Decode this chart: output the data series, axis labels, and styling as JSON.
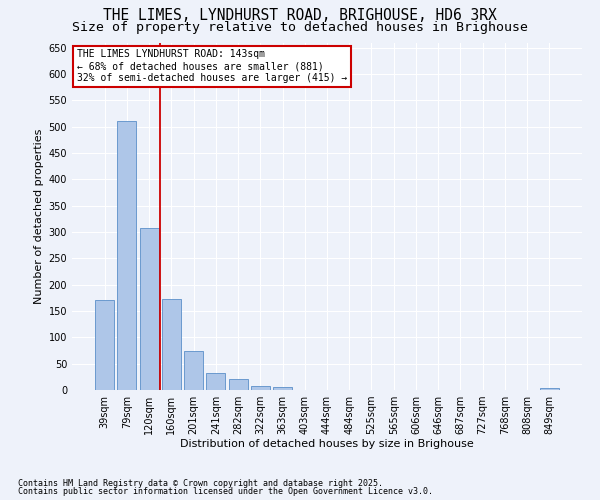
{
  "title_line1": "THE LIMES, LYNDHURST ROAD, BRIGHOUSE, HD6 3RX",
  "title_line2": "Size of property relative to detached houses in Brighouse",
  "xlabel": "Distribution of detached houses by size in Brighouse",
  "ylabel": "Number of detached properties",
  "categories": [
    "39sqm",
    "79sqm",
    "120sqm",
    "160sqm",
    "201sqm",
    "241sqm",
    "282sqm",
    "322sqm",
    "363sqm",
    "403sqm",
    "444sqm",
    "484sqm",
    "525sqm",
    "565sqm",
    "606sqm",
    "646sqm",
    "687sqm",
    "727sqm",
    "768sqm",
    "808sqm",
    "849sqm"
  ],
  "values": [
    170,
    510,
    308,
    173,
    75,
    33,
    20,
    8,
    5,
    0,
    0,
    0,
    0,
    0,
    0,
    0,
    0,
    0,
    0,
    0,
    4
  ],
  "bar_color": "#aec6e8",
  "bar_edgecolor": "#5b8fc9",
  "vline_color": "#cc0000",
  "vline_pos": 2.5,
  "ylim": [
    0,
    660
  ],
  "yticks": [
    0,
    50,
    100,
    150,
    200,
    250,
    300,
    350,
    400,
    450,
    500,
    550,
    600,
    650
  ],
  "annotation_line1": "THE LIMES LYNDHURST ROAD: 143sqm",
  "annotation_line2": "← 68% of detached houses are smaller (881)",
  "annotation_line3": "32% of semi-detached houses are larger (415) →",
  "annotation_box_color": "#cc0000",
  "footnote1": "Contains HM Land Registry data © Crown copyright and database right 2025.",
  "footnote2": "Contains public sector information licensed under the Open Government Licence v3.0.",
  "background_color": "#eef2fa",
  "grid_color": "#ffffff",
  "title_fontsize": 10.5,
  "subtitle_fontsize": 9.5,
  "axis_label_fontsize": 8,
  "tick_fontsize": 7,
  "annotation_fontsize": 7,
  "footnote_fontsize": 6
}
